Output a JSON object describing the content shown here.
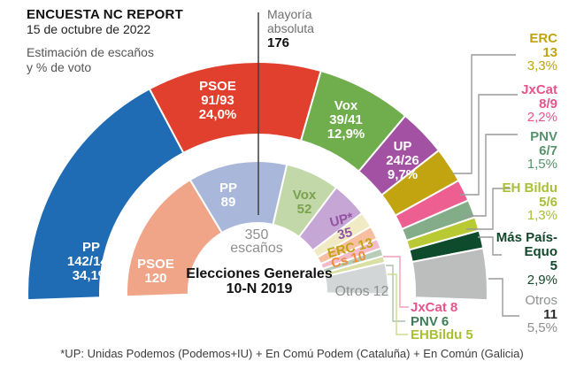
{
  "header": {
    "title": "ENCUESTA NC REPORT",
    "date": "15 de octubre de 2022",
    "subtitle_line1": "Estimación de escaños",
    "subtitle_line2": "y % de voto"
  },
  "majority": {
    "word1": "Mayoría",
    "word2": "absoluta",
    "value": "176"
  },
  "center": {
    "total_number": "350",
    "total_word": "escaños",
    "election_line1": "Elecciones Generales",
    "election_line2": "10-N 2019"
  },
  "footnote": "*UP: Unidas Podemos (Podemos+IU) + En Comú Podem (Cataluña) + En Común (Galicia)",
  "chart_data": {
    "type": "hemicycle-donut",
    "total_seats": 350,
    "majority_seats": 176,
    "outer_ring": {
      "label": "Estimación de escaños y % de voto (encuesta NC Report, 15 de octubre de 2022)",
      "segments": [
        {
          "party": "PP",
          "seats_label": "142/144",
          "seats_mid": 143,
          "pct": "34,1%",
          "color": "#1f6cb4",
          "text_color": "#ffffff"
        },
        {
          "party": "PSOE",
          "seats_label": "91/93",
          "seats_mid": 92,
          "pct": "24,0%",
          "color": "#e2402f",
          "text_color": "#ffffff"
        },
        {
          "party": "Vox",
          "seats_label": "39/41",
          "seats_mid": 40,
          "pct": "12,9%",
          "color": "#6fad4d",
          "text_color": "#ffffff"
        },
        {
          "party": "UP",
          "seats_label": "24/26",
          "seats_mid": 25,
          "pct": "9,7%",
          "color": "#a351a3",
          "text_color": "#ffffff"
        },
        {
          "party": "ERC",
          "seats_label": "13",
          "seats_mid": 13,
          "pct": "3,3%",
          "color": "#c2a411",
          "text_color": "#bfa40e"
        },
        {
          "party": "JxCat",
          "seats_label": "8/9",
          "seats_mid": 8.5,
          "pct": "2,2%",
          "color": "#ed5f90",
          "text_color": "#e8538a"
        },
        {
          "party": "PNV",
          "seats_label": "6/7",
          "seats_mid": 6.5,
          "pct": "1,5%",
          "color": "#83ad89",
          "text_color": "#56926b"
        },
        {
          "party": "EH Bildu",
          "seats_label": "5/6",
          "seats_mid": 5.5,
          "pct": "1,3%",
          "color": "#b9c934",
          "text_color": "#a8bf36"
        },
        {
          "party": "Más País-Equo",
          "name_line1": "Más País-",
          "name_line2": "Equo",
          "seats_label": "5",
          "seats_mid": 5,
          "pct": "2,9%",
          "color": "#0e4a2c",
          "text_color": "#12472b"
        },
        {
          "party": "Otros",
          "seats_label": "11",
          "seats_mid": 11,
          "pct": "5,5%",
          "color": "#bcbebe",
          "text_color": "#8d8f90",
          "number_color": "#2b2b2b"
        }
      ]
    },
    "inner_ring": {
      "label": "Elecciones Generales 10-N 2019",
      "segments": [
        {
          "party": "PSOE",
          "seats": 120,
          "seats_label": "120",
          "color": "#f0a589",
          "text_color": "#ffffff"
        },
        {
          "party": "PP",
          "seats": 89,
          "seats_label": "89",
          "color": "#a9b8da",
          "text_color": "#ffffff"
        },
        {
          "party": "Vox",
          "seats": 52,
          "seats_label": "52",
          "color": "#c2d8a8",
          "text_color": "#79a24e"
        },
        {
          "party": "UP*",
          "seats": 35,
          "seats_label": "35",
          "color": "#c6a6d5",
          "text_color": "#9253a1"
        },
        {
          "party": "ERC",
          "seats": 13,
          "seats_label": "13",
          "color": "#f0ebc4",
          "text_color": "#c0a512"
        },
        {
          "party": "Cs",
          "seats": 10,
          "seats_label": "10",
          "color": "#f6bfa0",
          "text_color": "#ed8e3f"
        },
        {
          "party": "JxCat",
          "seats": 8,
          "seats_label": "8",
          "color": "#f4bccb",
          "text_color": "#e8538a"
        },
        {
          "party": "PNV",
          "seats": 6,
          "seats_label": "6",
          "color": "#b7cdb7",
          "text_color": "#3f7d56"
        },
        {
          "party": "EHBildu",
          "seats": 5,
          "seats_label": "5",
          "color": "#dadfa3",
          "text_color": "#a8bf36"
        },
        {
          "party": "Otros",
          "seats": 12,
          "seats_label": "12",
          "color": "#d3d6d6",
          "text_color": "#8d8f90"
        }
      ]
    }
  }
}
